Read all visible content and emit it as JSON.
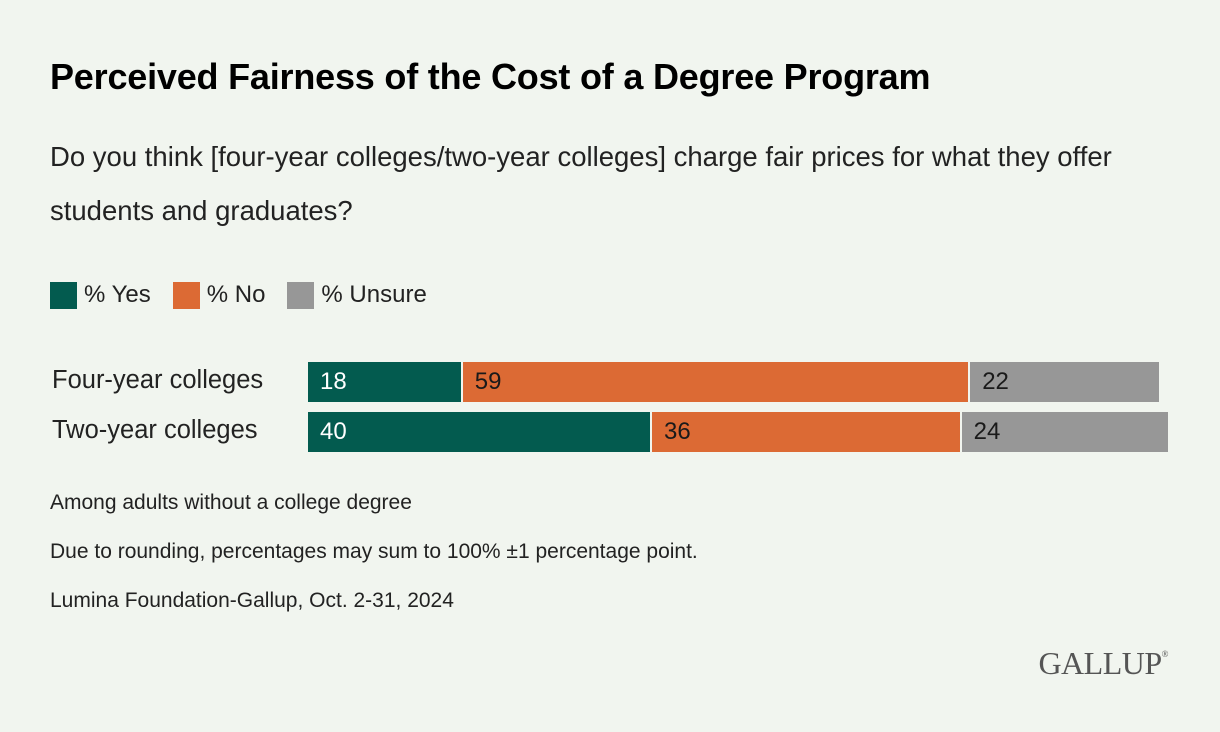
{
  "title": "Perceived Fairness of the Cost of a Degree Program",
  "subtitle": "Do you think [four-year colleges/two-year colleges] charge fair prices for what they offer students and graduates?",
  "notes": [
    "Among adults without a college degree",
    "Due to rounding, percentages may sum to 100% ±1 percentage point.",
    "Lumina Foundation-Gallup, Oct. 2-31, 2024"
  ],
  "logo": "GALLUP",
  "colors": {
    "yes": "#035b4f",
    "no": "#dc6a34",
    "unsure": "#979797",
    "background": "#f1f5ef"
  },
  "chart_data": {
    "type": "bar",
    "orientation": "horizontal",
    "stacked": true,
    "categories": [
      "Four-year colleges",
      "Two-year colleges"
    ],
    "series": [
      {
        "name": "% Yes",
        "values": [
          18,
          40
        ],
        "color": "#035b4f",
        "label_color": "#ffffff"
      },
      {
        "name": "% No",
        "values": [
          59,
          36
        ],
        "color": "#dc6a34",
        "label_color": "#1a1a1a"
      },
      {
        "name": "% Unsure",
        "values": [
          22,
          24
        ],
        "color": "#979797",
        "label_color": "#1a1a1a"
      }
    ],
    "xlim": [
      0,
      100
    ],
    "legend_position": "top-left",
    "grid": false
  }
}
